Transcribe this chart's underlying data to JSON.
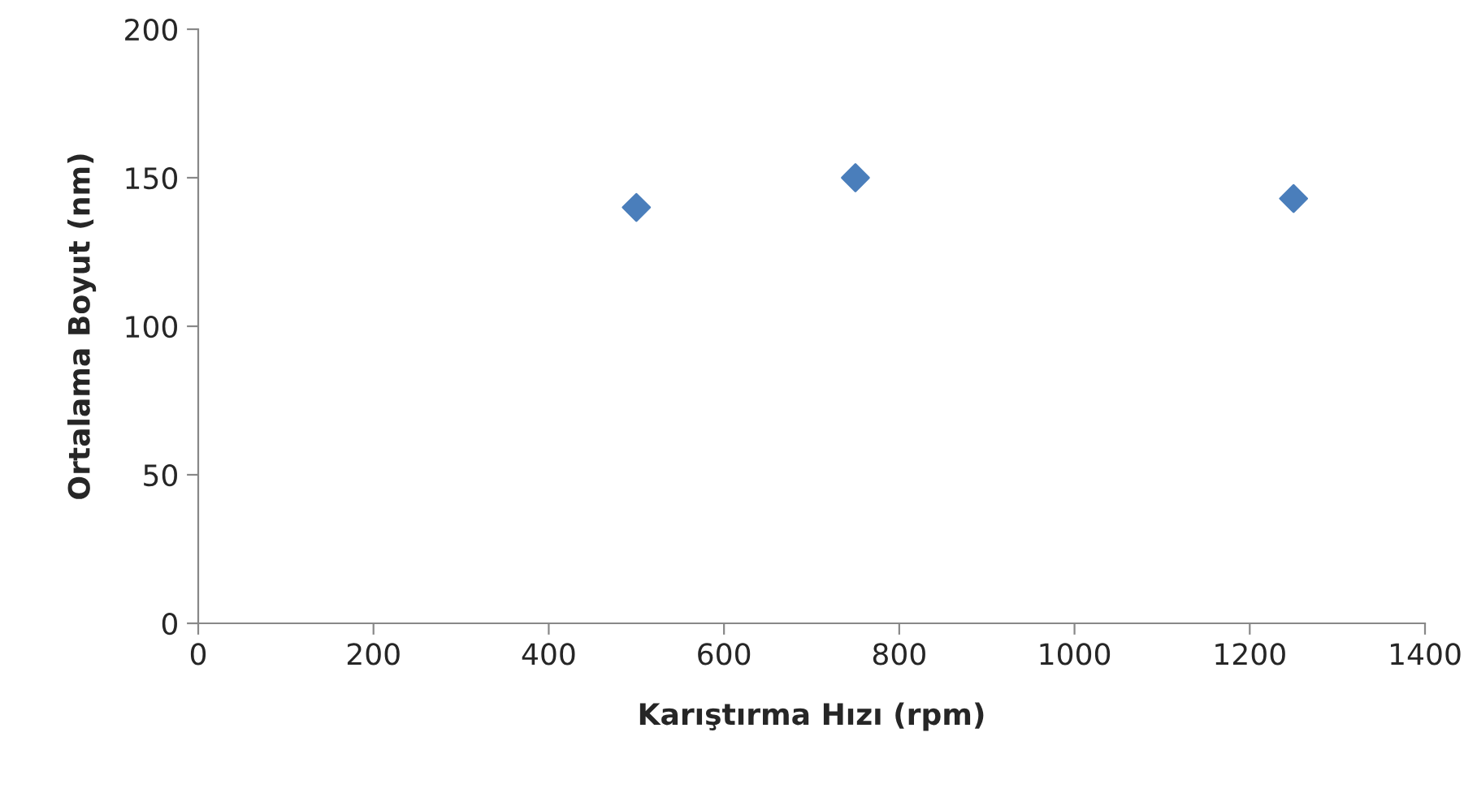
{
  "chart_data": {
    "type": "scatter",
    "xlabel": "Karıştırma Hızı (rpm)",
    "ylabel": "Ortalama Boyut (nm)",
    "x": [
      500,
      750,
      1250
    ],
    "series": [
      {
        "color": "#4a7ebb",
        "values": [
          140,
          150,
          143
        ]
      }
    ],
    "xlim": [
      0,
      1400
    ],
    "xticks": [
      0,
      200,
      400,
      600,
      800,
      1000,
      1200,
      1400
    ],
    "ylim": [
      0,
      200
    ],
    "yticks": [
      0,
      50,
      100,
      150,
      200
    ],
    "marker": "diamond",
    "grid": false,
    "legend": false
  }
}
